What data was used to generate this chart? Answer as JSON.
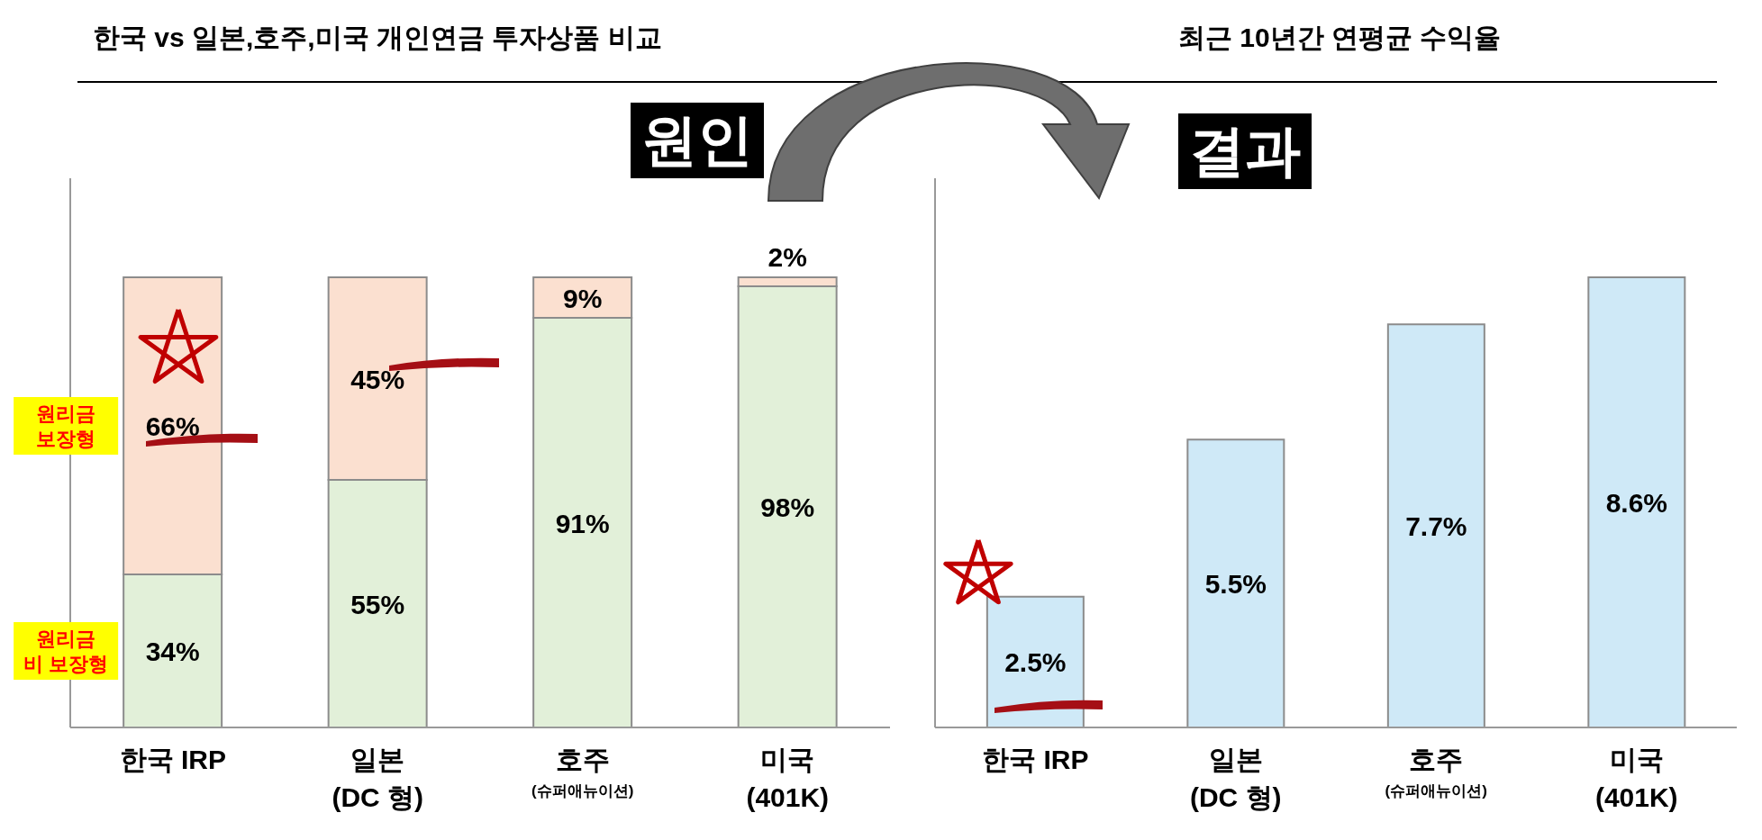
{
  "chart_data": [
    {
      "type": "bar",
      "title": "한국 vs 일본,호주,미국 개인연금 투자상품 비교",
      "stacked": true,
      "categories": [
        "한국 IRP",
        "일본 (DC 형)",
        "호주 (슈퍼애뉴이션)",
        "미국 (401K)"
      ],
      "series": [
        {
          "name": "원리금 비 보장형",
          "color": "#e2f0d9",
          "values": [
            34,
            55,
            91,
            98
          ],
          "value_labels": [
            "34%",
            "55%",
            "91%",
            "98%"
          ]
        },
        {
          "name": "원리금 보장형",
          "color": "#fbe0d0",
          "values": [
            66,
            45,
            9,
            2
          ],
          "value_labels": [
            "66%",
            "45%",
            "9%",
            "2%"
          ]
        }
      ],
      "annotations": [
        "원인"
      ]
    },
    {
      "type": "bar",
      "title": "최근 10년간 연평균 수익율",
      "categories": [
        "한국 IRP",
        "일본 (DC 형)",
        "호주 (슈퍼애뉴이션)",
        "미국 (401K)"
      ],
      "series": [
        {
          "color": "#cfe9f7",
          "values": [
            2.5,
            5.5,
            7.7,
            8.6
          ],
          "value_labels": [
            "2.5%",
            "5.5%",
            "7.7%",
            "8.6%"
          ]
        }
      ],
      "annotations": [
        "결과"
      ]
    }
  ]
}
